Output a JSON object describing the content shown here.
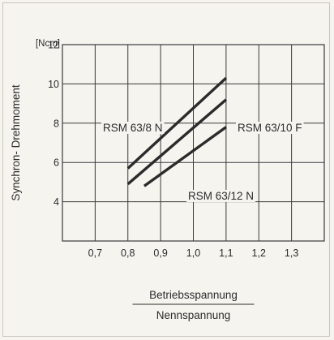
{
  "chart_data": {
    "type": "line",
    "ylabel": "Synchron- Drehmoment",
    "yunit": "[Ncm]",
    "xlabel_numerator": "Betriebsspannung",
    "xlabel_denominator": "Nennspannung",
    "xlim": [
      0.6,
      1.4
    ],
    "ylim": [
      2,
      12
    ],
    "x_ticks": [
      0.7,
      0.8,
      0.9,
      1.0,
      1.1,
      1.2,
      1.3
    ],
    "x_tick_labels": [
      "0,7",
      "0,8",
      "0,9",
      "1,0",
      "1,1",
      "1,2",
      "1,3"
    ],
    "y_ticks": [
      4,
      6,
      8,
      10,
      12
    ],
    "y_tick_labels": [
      "4",
      "6",
      "8",
      "10",
      "12"
    ],
    "grid": true,
    "series": [
      {
        "name": "RSM 63/8 N",
        "x": [
          0.8,
          1.1
        ],
        "y": [
          5.7,
          10.3
        ]
      },
      {
        "name": "RSM 63/10 F",
        "x": [
          0.8,
          1.1
        ],
        "y": [
          4.9,
          9.2
        ]
      },
      {
        "name": "RSM 63/12 N",
        "x": [
          0.85,
          1.1
        ],
        "y": [
          4.8,
          7.8
        ]
      }
    ]
  }
}
